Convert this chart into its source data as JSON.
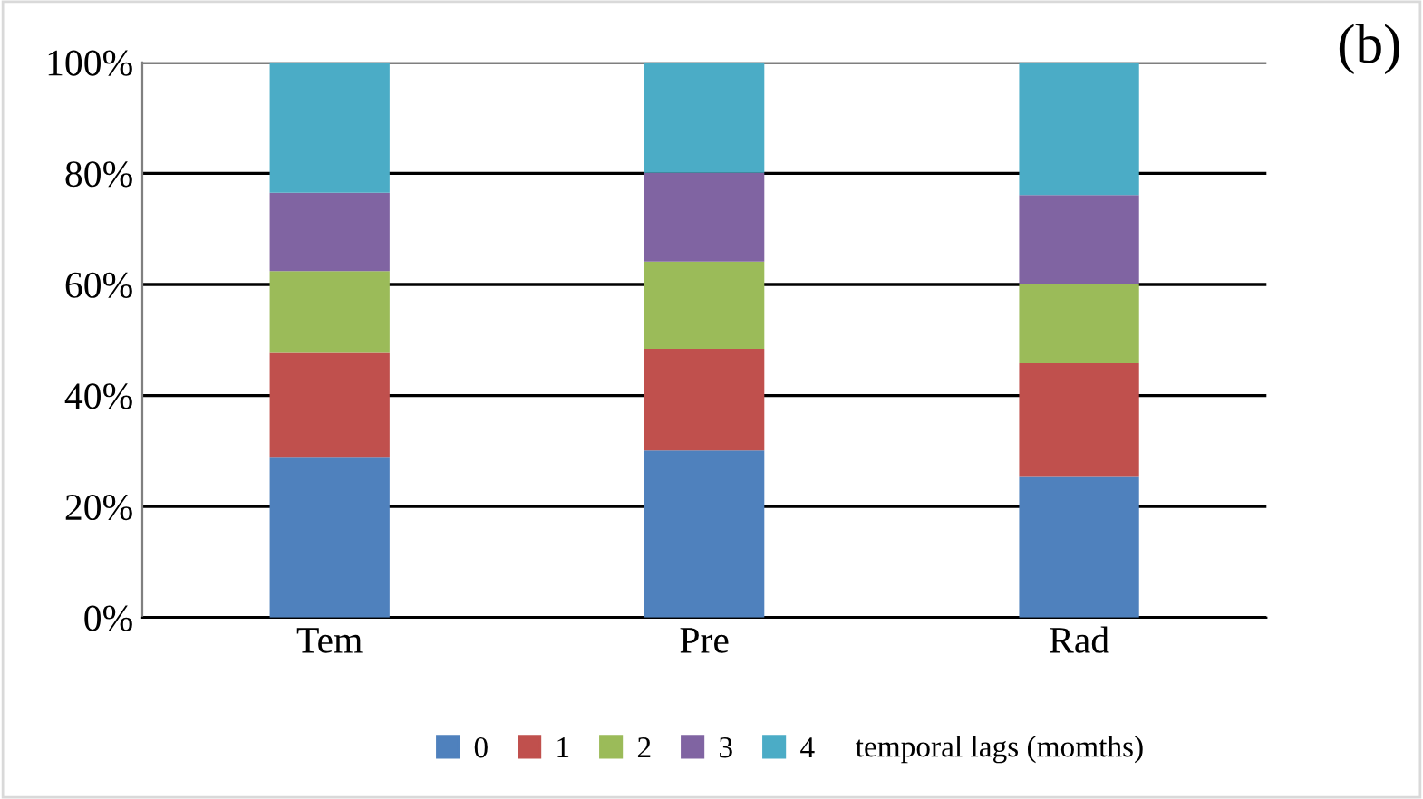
{
  "chart_data": {
    "type": "bar",
    "stacked": true,
    "categories": [
      "Tem",
      "Pre",
      "Rad"
    ],
    "series": [
      {
        "name": "0",
        "color": "#4f81bd",
        "values": [
          28.8,
          30.1,
          25.5
        ]
      },
      {
        "name": "1",
        "color": "#c0504d",
        "values": [
          18.9,
          18.3,
          20.3
        ]
      },
      {
        "name": "2",
        "color": "#9bbb59",
        "values": [
          14.7,
          15.7,
          14.3
        ]
      },
      {
        "name": "3",
        "color": "#8064a2",
        "values": [
          14.1,
          16.0,
          16.0
        ]
      },
      {
        "name": "4",
        "color": "#4bacc6",
        "values": [
          23.5,
          19.9,
          23.9
        ]
      }
    ],
    "ylim": [
      0,
      100
    ],
    "yticks": [
      {
        "value": 0,
        "label": "0%"
      },
      {
        "value": 20,
        "label": "20%"
      },
      {
        "value": 40,
        "label": "40%"
      },
      {
        "value": 60,
        "label": "60%"
      },
      {
        "value": 80,
        "label": "80%"
      },
      {
        "value": 100,
        "label": "100%"
      }
    ],
    "grid": "y",
    "legend": "bottom",
    "legend_title": "temporal lags (momths)",
    "annotations": [
      "(b)"
    ]
  }
}
